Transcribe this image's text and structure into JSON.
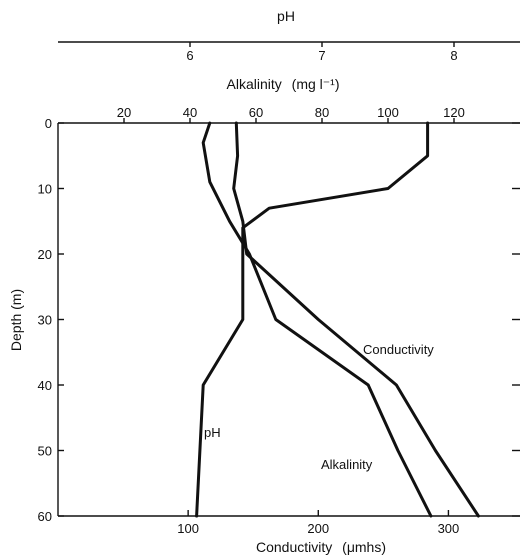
{
  "chart_data": {
    "type": "line",
    "axes": {
      "ph": {
        "label": "pH",
        "ticks": [
          6,
          7,
          8
        ],
        "range": [
          5,
          8.5
        ]
      },
      "alkalinity": {
        "label": "Alkalinity",
        "unit": "(mg l⁻¹)",
        "ticks": [
          20,
          40,
          60,
          80,
          100,
          120
        ],
        "range": [
          0,
          140
        ]
      },
      "conductivity": {
        "label": "Conductivity",
        "unit": "(μmhs)",
        "ticks": [
          100,
          200,
          300
        ],
        "range": [
          0,
          355
        ]
      },
      "depth": {
        "label": "Depth (m)",
        "ticks": [
          0,
          10,
          20,
          30,
          40,
          50,
          60
        ],
        "range": [
          0,
          60
        ]
      }
    },
    "series": [
      {
        "name": "pH",
        "axis": "ph",
        "points": [
          [
            7.8,
            0
          ],
          [
            7.8,
            5
          ],
          [
            7.5,
            10
          ],
          [
            6.6,
            13
          ],
          [
            6.4,
            16
          ],
          [
            6.4,
            20
          ],
          [
            6.4,
            30
          ],
          [
            6.1,
            40
          ],
          [
            6.05,
            60
          ]
        ]
      },
      {
        "name": "Conductivity",
        "axis": "conductivity",
        "points": [
          [
            137,
            0
          ],
          [
            138,
            5
          ],
          [
            135,
            10
          ],
          [
            142,
            15
          ],
          [
            145,
            20
          ],
          [
            200,
            30
          ],
          [
            260,
            40
          ],
          [
            290,
            50
          ],
          [
            323,
            60
          ]
        ]
      },
      {
        "name": "Alkalinity",
        "axis": "alkalinity",
        "points": [
          [
            46,
            0
          ],
          [
            44,
            3
          ],
          [
            46,
            9
          ],
          [
            52,
            15
          ],
          [
            58,
            20
          ],
          [
            66,
            30
          ],
          [
            94,
            40
          ],
          [
            103,
            50
          ],
          [
            113,
            60
          ]
        ]
      }
    ]
  }
}
